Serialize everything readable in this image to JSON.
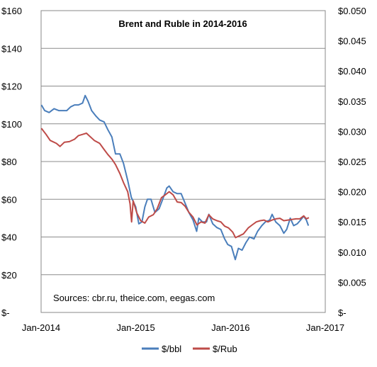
{
  "chart_data": {
    "type": "line",
    "title": "Brent and Ruble in 2014-2016",
    "annotation": "Sources: cbr.ru, theice.com, eegas.com",
    "xlabel": "",
    "ylabel": "",
    "x_ticks": [
      "Jan-2014",
      "Jan-2015",
      "Jan-2016",
      "Jan-2017"
    ],
    "x_range": [
      "2014-01-01",
      "2017-01-01"
    ],
    "y_left": {
      "ticks": [
        "$-",
        "$20",
        "$40",
        "$60",
        "$80",
        "$100",
        "$120",
        "$140",
        "$160"
      ],
      "range": [
        0,
        160
      ]
    },
    "y_right": {
      "ticks": [
        "$-",
        "$0.005",
        "$0.010",
        "$0.015",
        "$0.020",
        "$0.025",
        "$0.030",
        "$0.035",
        "$0.040",
        "$0.045",
        "$0.050"
      ],
      "range": [
        0,
        0.05
      ]
    },
    "grid": "horizontal",
    "legend_position": "bottom",
    "series": [
      {
        "name": "$/bbl",
        "axis": "left",
        "color": "#4a7ebb",
        "points": [
          [
            "2014-01-02",
            110
          ],
          [
            "2014-01-15",
            107
          ],
          [
            "2014-02-01",
            106
          ],
          [
            "2014-02-20",
            108
          ],
          [
            "2014-03-10",
            107
          ],
          [
            "2014-03-25",
            107
          ],
          [
            "2014-04-10",
            107
          ],
          [
            "2014-04-25",
            109
          ],
          [
            "2014-05-10",
            110
          ],
          [
            "2014-05-25",
            110
          ],
          [
            "2014-06-10",
            111
          ],
          [
            "2014-06-20",
            115
          ],
          [
            "2014-07-01",
            112
          ],
          [
            "2014-07-15",
            107
          ],
          [
            "2014-08-01",
            104
          ],
          [
            "2014-08-15",
            102
          ],
          [
            "2014-09-01",
            101
          ],
          [
            "2014-09-15",
            97
          ],
          [
            "2014-10-01",
            93
          ],
          [
            "2014-10-15",
            84
          ],
          [
            "2014-11-01",
            84
          ],
          [
            "2014-11-15",
            79
          ],
          [
            "2014-12-01",
            70
          ],
          [
            "2014-12-15",
            61
          ],
          [
            "2015-01-01",
            56
          ],
          [
            "2015-01-13",
            47
          ],
          [
            "2015-01-25",
            48
          ],
          [
            "2015-02-05",
            56
          ],
          [
            "2015-02-15",
            60
          ],
          [
            "2015-03-01",
            60
          ],
          [
            "2015-03-16",
            53
          ],
          [
            "2015-04-01",
            55
          ],
          [
            "2015-04-15",
            60
          ],
          [
            "2015-05-01",
            66
          ],
          [
            "2015-05-10",
            67
          ],
          [
            "2015-05-25",
            64
          ],
          [
            "2015-06-10",
            63
          ],
          [
            "2015-06-25",
            63
          ],
          [
            "2015-07-10",
            58
          ],
          [
            "2015-07-25",
            53
          ],
          [
            "2015-08-10",
            49
          ],
          [
            "2015-08-24",
            43
          ],
          [
            "2015-09-01",
            50
          ],
          [
            "2015-09-15",
            48
          ],
          [
            "2015-10-01",
            48
          ],
          [
            "2015-10-10",
            52
          ],
          [
            "2015-10-25",
            47
          ],
          [
            "2015-11-10",
            45
          ],
          [
            "2015-11-25",
            44
          ],
          [
            "2015-12-10",
            39
          ],
          [
            "2015-12-22",
            36
          ],
          [
            "2016-01-05",
            35
          ],
          [
            "2016-01-20",
            28
          ],
          [
            "2016-02-01",
            34
          ],
          [
            "2016-02-15",
            33
          ],
          [
            "2016-03-01",
            37
          ],
          [
            "2016-03-15",
            40
          ],
          [
            "2016-04-01",
            39
          ],
          [
            "2016-04-15",
            43
          ],
          [
            "2016-05-01",
            46
          ],
          [
            "2016-05-15",
            48
          ],
          [
            "2016-06-01",
            49
          ],
          [
            "2016-06-10",
            52
          ],
          [
            "2016-06-24",
            48
          ],
          [
            "2016-07-10",
            46
          ],
          [
            "2016-07-25",
            42
          ],
          [
            "2016-08-05",
            44
          ],
          [
            "2016-08-19",
            50
          ],
          [
            "2016-09-01",
            46
          ],
          [
            "2016-09-15",
            47
          ],
          [
            "2016-09-28",
            49
          ],
          [
            "2016-10-10",
            51
          ],
          [
            "2016-10-20",
            49
          ],
          [
            "2016-10-28",
            46
          ]
        ]
      },
      {
        "name": "$/Rub",
        "axis": "right",
        "color": "#be4b48",
        "points": [
          [
            "2014-01-02",
            0.0305
          ],
          [
            "2014-01-20",
            0.0295
          ],
          [
            "2014-02-05",
            0.0285
          ],
          [
            "2014-03-01",
            0.028
          ],
          [
            "2014-03-15",
            0.0275
          ],
          [
            "2014-04-01",
            0.0282
          ],
          [
            "2014-04-20",
            0.0283
          ],
          [
            "2014-05-10",
            0.0287
          ],
          [
            "2014-05-25",
            0.0293
          ],
          [
            "2014-06-10",
            0.0295
          ],
          [
            "2014-06-25",
            0.0297
          ],
          [
            "2014-07-10",
            0.0291
          ],
          [
            "2014-07-25",
            0.0285
          ],
          [
            "2014-08-15",
            0.028
          ],
          [
            "2014-09-01",
            0.027
          ],
          [
            "2014-09-15",
            0.0262
          ],
          [
            "2014-10-01",
            0.0254
          ],
          [
            "2014-10-15",
            0.0245
          ],
          [
            "2014-11-01",
            0.023
          ],
          [
            "2014-11-15",
            0.0215
          ],
          [
            "2014-12-01",
            0.02
          ],
          [
            "2014-12-10",
            0.018
          ],
          [
            "2014-12-16",
            0.015
          ],
          [
            "2014-12-22",
            0.0185
          ],
          [
            "2015-01-05",
            0.0165
          ],
          [
            "2015-01-20",
            0.0152
          ],
          [
            "2015-02-05",
            0.0148
          ],
          [
            "2015-02-20",
            0.0158
          ],
          [
            "2015-03-10",
            0.0162
          ],
          [
            "2015-03-25",
            0.0172
          ],
          [
            "2015-04-10",
            0.019
          ],
          [
            "2015-04-25",
            0.0195
          ],
          [
            "2015-05-10",
            0.02
          ],
          [
            "2015-05-25",
            0.0195
          ],
          [
            "2015-06-10",
            0.0183
          ],
          [
            "2015-06-25",
            0.0182
          ],
          [
            "2015-07-10",
            0.0176
          ],
          [
            "2015-07-25",
            0.0166
          ],
          [
            "2015-08-10",
            0.0158
          ],
          [
            "2015-08-25",
            0.0145
          ],
          [
            "2015-09-10",
            0.015
          ],
          [
            "2015-09-25",
            0.0148
          ],
          [
            "2015-10-10",
            0.0162
          ],
          [
            "2015-10-25",
            0.0155
          ],
          [
            "2015-11-10",
            0.0152
          ],
          [
            "2015-11-25",
            0.015
          ],
          [
            "2015-12-10",
            0.0143
          ],
          [
            "2015-12-25",
            0.014
          ],
          [
            "2016-01-10",
            0.0133
          ],
          [
            "2016-01-21",
            0.0124
          ],
          [
            "2016-02-05",
            0.0127
          ],
          [
            "2016-02-20",
            0.013
          ],
          [
            "2016-03-10",
            0.014
          ],
          [
            "2016-03-25",
            0.0145
          ],
          [
            "2016-04-10",
            0.015
          ],
          [
            "2016-04-25",
            0.0152
          ],
          [
            "2016-05-10",
            0.0153
          ],
          [
            "2016-05-25",
            0.015
          ],
          [
            "2016-06-10",
            0.0153
          ],
          [
            "2016-06-25",
            0.0155
          ],
          [
            "2016-07-10",
            0.0156
          ],
          [
            "2016-07-25",
            0.0152
          ],
          [
            "2016-08-10",
            0.0153
          ],
          [
            "2016-08-25",
            0.0154
          ],
          [
            "2016-09-10",
            0.0155
          ],
          [
            "2016-09-25",
            0.0155
          ],
          [
            "2016-10-10",
            0.016
          ],
          [
            "2016-10-20",
            0.0155
          ],
          [
            "2016-10-30",
            0.0157
          ]
        ]
      }
    ]
  }
}
